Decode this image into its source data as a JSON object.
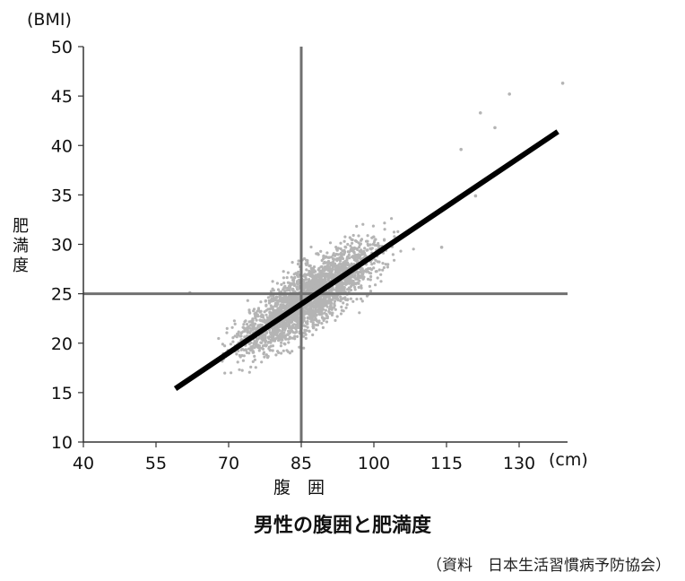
{
  "chart_data": {
    "type": "scatter",
    "title": "男性の腹囲と肥満度",
    "xlabel": "腹　囲",
    "ylabel": "肥満度",
    "x_unit": "(cm)",
    "y_unit": "(BMI)",
    "xlim": [
      40,
      140
    ],
    "ylim": [
      10,
      50
    ],
    "x_ticks": [
      40,
      55,
      70,
      85,
      100,
      115,
      130
    ],
    "y_ticks": [
      10,
      15,
      20,
      25,
      30,
      35,
      40,
      45,
      50
    ],
    "reference_lines": {
      "x": 85,
      "y": 25
    },
    "trend_line": {
      "x": [
        59,
        138
      ],
      "y": [
        15.4,
        41.4
      ]
    },
    "scatter_cloud": {
      "description_only": false,
      "x_range": [
        58,
        139
      ],
      "center_slope": 0.33,
      "center_intercept": -4.0,
      "spread_bmi": 2.2
    },
    "outliers": [
      {
        "x": 62,
        "y": 25.1
      },
      {
        "x": 128,
        "y": 45.2
      },
      {
        "x": 139,
        "y": 46.3
      },
      {
        "x": 122,
        "y": 43.3
      },
      {
        "x": 121,
        "y": 34.9
      },
      {
        "x": 114,
        "y": 29.7
      },
      {
        "x": 125,
        "y": 41.8
      },
      {
        "x": 118,
        "y": 39.6
      }
    ],
    "colors": {
      "points": "#b4b4b4",
      "trend": "#000000",
      "reference": "#707070",
      "axis": "#333333"
    }
  },
  "source": "（資料　日本生活習慣病予防協会）"
}
